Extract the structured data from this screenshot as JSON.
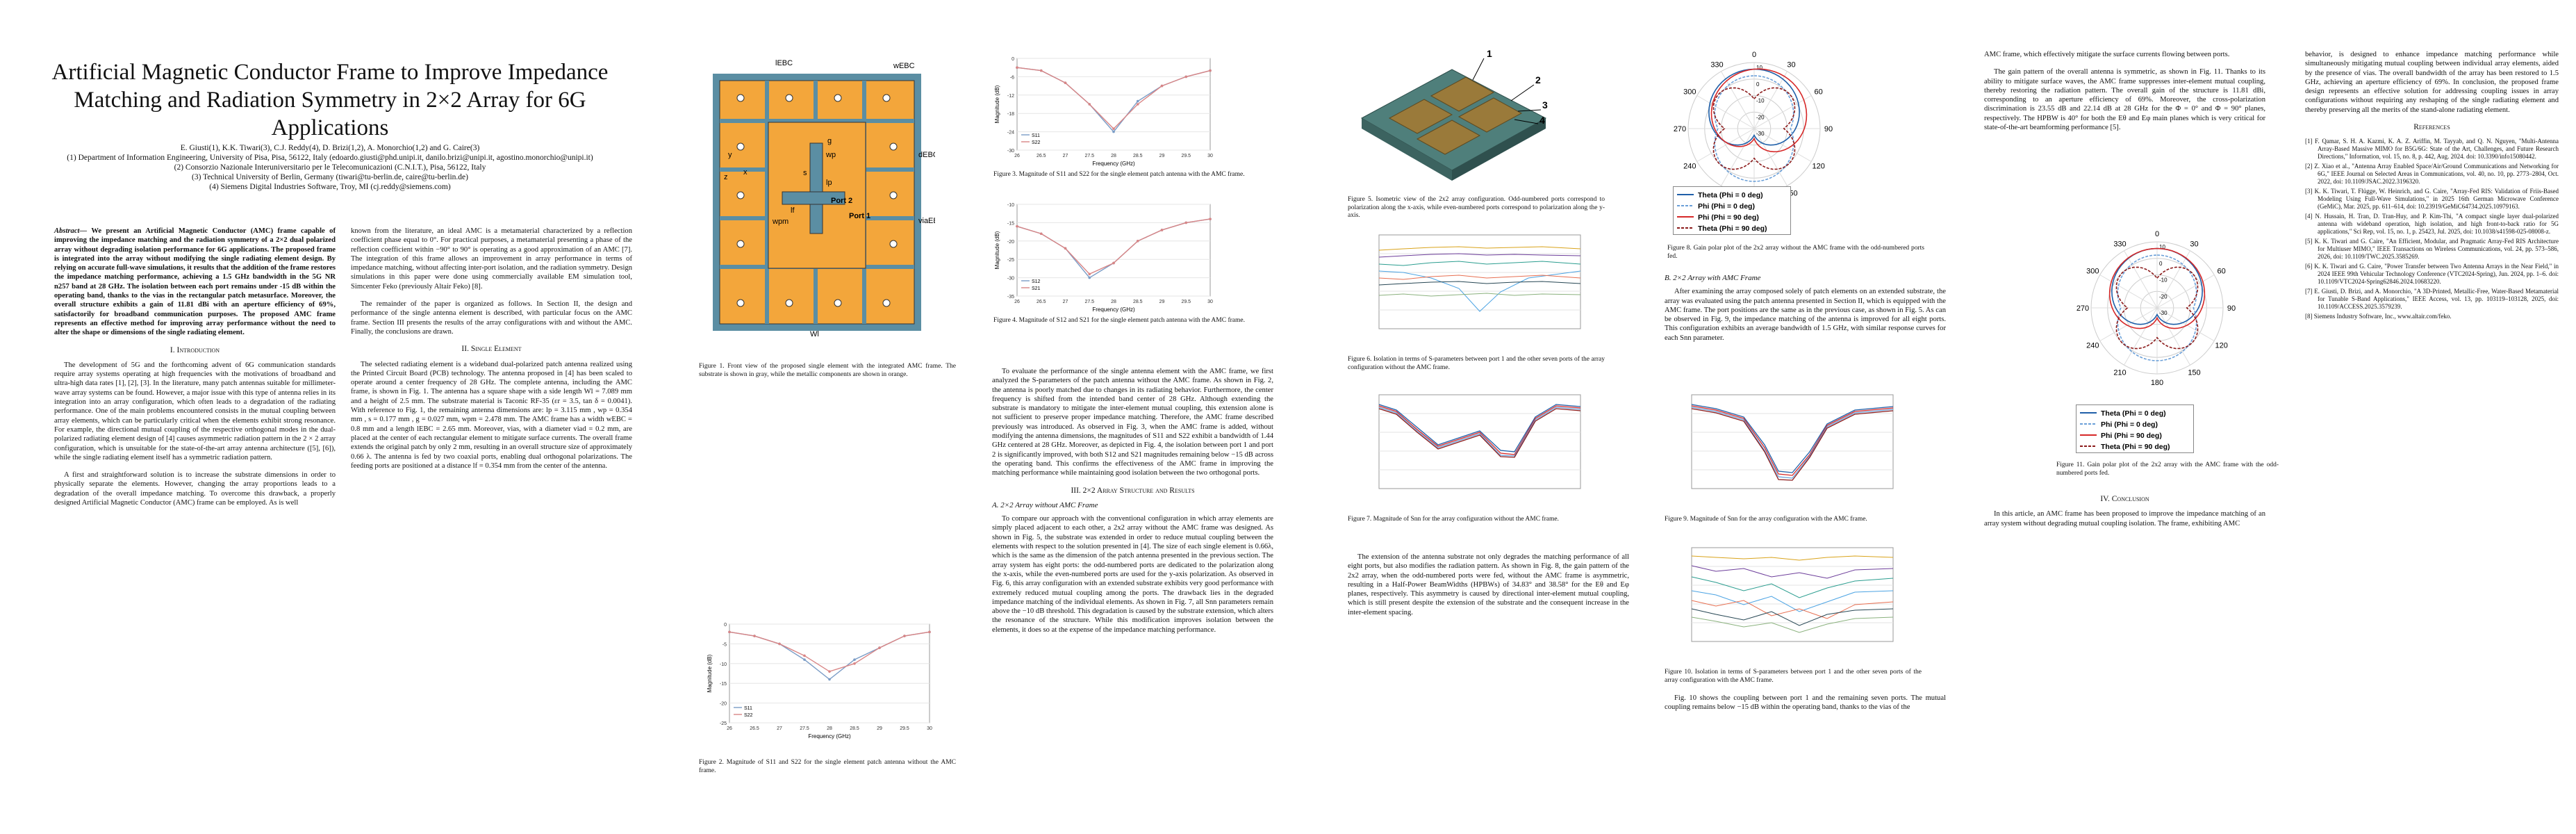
{
  "paper": {
    "title": "Artificial Magnetic Conductor Frame to Improve Impedance Matching and Radiation Symmetry in 2×2 Array for 6G Applications",
    "authors": "E. Giusti(1), K.K. Tiwari(3), C.J. Reddy(4), D. Brizi(1,2), A. Monorchio(1,2) and G. Caire(3)",
    "affil1": "(1) Department of Information Engineering, University of Pisa, Pisa, 56122, Italy (edoardo.giusti@phd.unipi.it, danilo.brizi@unipi.it, agostino.monorchio@unipi.it)",
    "affil2": "(2) Consorzio Nazionale Interuniversitario per le Telecomunicazioni (C.N.I.T.), Pisa, 56122, Italy",
    "affil3": "(3) Technical University of Berlin, Germany (tiwari@tu-berlin.de, caire@tu-berlin.de)",
    "affil4": "(4) Siemens Digital Industries Software, Troy, MI (cj.reddy@siemens.com)"
  },
  "col1": {
    "abstract_label": "Abstract—",
    "abstract": "We present an Artificial Magnetic Conductor (AMC) frame capable of improving the impedance matching and the radiation symmetry of a 2×2 dual polarized array without degrading isolation performance for 6G applications. The proposed frame is integrated into the array without modifying the single radiating element design. By relying on accurate full-wave simulations, it results that the addition of the frame restores the impedance matching performance, achieving a 1.5 GHz bandwidth in the 5G NR n257 band at 28 GHz. The isolation between each port remains under -15 dB within the operating band, thanks to the vias in the rectangular patch metasurface. Moreover, the overall structure exhibits a gain of 11.81 dBi with an aperture efficiency of 69%, satisfactorily for broadband communication purposes. The proposed AMC frame represents an effective method for improving array performance without the need to alter the shape or dimensions of the single radiating element.",
    "sec1": "I. Introduction",
    "p1": "The development of 5G and the forthcoming advent of 6G communication standards require array systems operating at high frequencies with the motivations of broadband and ultra-high data rates [1], [2], [3]. In the literature, many patch antennas suitable for millimeter-wave array systems can be found. However, a major issue with this type of antenna relies in its integration into an array configuration, which often leads to a degradation of the radiating performance. One of the main problems encountered consists in the mutual coupling between array elements, which can be particularly critical when the elements exhibit strong resonance. For example, the directional mutual coupling of the respective orthogonal modes in the dual-polarized radiating element design of [4] causes asymmetric radiation pattern in the 2 × 2 array configuration, which is unsuitable for the state-of-the-art array antenna architecture ([5], [6]), while the single radiating element itself has a symmetric radiation pattern.",
    "p2": "A first and straightforward solution is to increase the substrate dimensions in order to physically separate the elements. However, changing the array proportions leads to a degradation of the overall impedance matching. To overcome this drawback, a properly designed Artificial Magnetic Conductor (AMC) frame can be employed. As is well"
  },
  "col2": {
    "p1": "known from the literature, an ideal AMC is a metamaterial characterized by a reflection coefficient phase equal to 0°. For practical purposes, a metamaterial presenting a phase of the reflection coefficient within −90° to 90° is operating as a good approximation of an AMC [7]. The integration of this frame allows an improvement in array performance in terms of impedance matching, without affecting inter-port isolation, and the radiation symmetry. Design simulations in this paper were done using commercially available EM simulation tool, Simcenter Feko (previously Altair Feko) [8].",
    "p2": "The remainder of the paper is organized as follows. In Section II, the design and performance of the single antenna element is described, with particular focus on the AMC frame. Section III presents the results of the array configurations with and without the AMC. Finally, the conclusions are drawn.",
    "sec2": "II. Single Element",
    "p3": "The selected radiating element is a wideband dual-polarized patch antenna realized using the Printed Circuit Board (PCB) technology. The antenna proposed in [4] has been scaled to operate around a center frequency of 28 GHz. The complete antenna, including the AMC frame, is shown in Fig. 1. The antenna has a square shape with a side length Wl = 7.089 mm and a height of 2.5 mm. The substrate material is Taconic RF-35 (εr = 3.5, tan δ = 0.0041). With reference to Fig. 1, the remaining antenna dimensions are: lp = 3.115 mm , wp = 0.354 mm , s = 0.177 mm , g = 0.027 mm, wpm = 2.478 mm. The AMC frame has a width wEBC = 0.8 mm and a length lEBC = 2.65 mm. Moreover, vias, with a diameter viad = 0.2 mm, are placed at the center of each rectangular element to mitigate surface currents. The overall frame extends the original patch by only 2 mm, resulting in an overall structure size of approximately 0.66 λ. The antenna is fed by two coaxial ports, enabling dual orthogonal polarizations. The feeding ports are positioned at a distance lf = 0.354 mm from the center of the antenna."
  },
  "col3": {
    "fig1_cap": "Figure 1. Front view of the proposed single element with the integrated AMC frame. The substrate is shown in gray, while the metallic components are shown in orange.",
    "fig2_cap": "Figure 2. Magnitude of S11 and S22 for the single element patch antenna without the AMC frame."
  },
  "col4": {
    "fig3_cap": "Figure 3. Magnitude of S11 and S22 for the single element patch antenna with the AMC frame.",
    "fig4_cap": "Figure 4. Magnitude of S12 and S21 for the single element patch antenna with the AMC frame.",
    "p1": "To evaluate the performance of the single antenna element with the AMC frame, we first analyzed the S-parameters of the patch antenna without the AMC frame. As shown in Fig. 2, the antenna is poorly matched due to changes in its radiating behavior. Furthermore, the center frequency is shifted from the intended band center of 28 GHz. Although extending the substrate is mandatory to mitigate the inter-element mutual coupling, this extension alone is not sufficient to preserve proper impedance matching. Therefore, the AMC frame described previously was introduced. As observed in Fig. 3, when the AMC frame is added, without modifying the antenna dimensions, the magnitudes of S11 and S22 exhibit a bandwidth of 1.44 GHz centered at 28 GHz. Moreover, as depicted in Fig. 4, the isolation between port 1 and port 2 is significantly improved, with both S12 and S21 magnitudes remaining below −15 dB across the operating band. This confirms the effectiveness of the AMC frame in improving the matching performance while maintaining good isolation between the two orthogonal ports.",
    "sec3": "III. 2×2 Array Structure and Results",
    "sub_a": "A. 2×2 Array without AMC Frame",
    "p2": "To compare our approach with the conventional configuration in which array elements are simply placed adjacent to each other, a 2x2 array without the AMC frame was designed. As shown in Fig. 5, the substrate was extended in order to reduce mutual coupling between the elements with respect to the solution presented in [4]. The size of each single element is 0.66λ, which is the same as the dimension of the patch antenna presented in the previous section. The array system has eight ports: the odd-numbered ports are dedicated to the polarization along the x-axis, while the even-numbered ports are used for the y-axis polarization. As observed in Fig. 6, this array configuration with an extended substrate exhibits very good performance with extremely reduced mutual coupling among the ports. The drawback lies in the degraded impedance matching of the individual elements. As shown in Fig. 7, all Snn parameters remain above the −10 dB threshold. This degradation is caused by the substrate extension, which alters the resonance of the structure. While this modification improves isolation between the elements, it does so at the expense of the impedance matching performance."
  },
  "col5": {
    "fig5_cap": "Figure 5. Isometric view of the 2x2 array configuration. Odd-numbered ports correspond to polarization along the x-axis, while even-numbered ports correspond to polarization along the y-axis.",
    "fig6_cap": "Figure 6. Isolation in terms of S-parameters between port 1 and the other seven ports of the array configuration without the AMC frame.",
    "fig7_cap": "Figure 7. Magnitude of Snn for the array configuration without the AMC frame.",
    "p1": "The extension of the antenna substrate not only degrades the matching performance of all eight ports, but also modifies the radiation pattern. As shown in Fig. 8, the gain pattern of the 2x2 array, when the odd-numbered ports were fed, without the AMC frame is asymmetric, resulting in a Half-Power BeamWidths (HPBWs) of 34.83° and 38.58° for the Eθ and Eφ planes, respectively. This asymmetry is caused by directional inter-element mutual coupling, which is still present despite the extension of the substrate and the consequent increase in the inter-element spacing."
  },
  "col6": {
    "fig8_cap": "Figure 8. Gain polar plot of the 2x2 array without the AMC frame with the odd-numbered ports fed.",
    "sub_b": "B. 2×2 Array with AMC Frame",
    "p1": "After examining the array composed solely of patch elements on an extended substrate, the array was evaluated using the patch antenna presented in Section II, which is equipped with the AMC frame. The port positions are the same as in the previous case, as shown in Fig. 5. As can be observed in Fig. 9, the impedance matching of the antenna is improved for all eight ports. This configuration exhibits an average bandwidth of 1.5 GHz, with similar response curves for each Snn parameter.",
    "fig9_cap": "Figure 9. Magnitude of Snn for the array configuration with the AMC frame.",
    "fig10_cap": "Figure 10. Isolation in terms of S-parameters between port 1 and the other seven ports of the array configuration with the AMC frame.",
    "p2": "Fig. 10 shows the coupling between port 1 and the remaining seven ports. The mutual coupling remains below −15 dB within the operating band, thanks to the vias of the"
  },
  "col7": {
    "p1": "AMC frame, which effectively mitigate the surface currents flowing between ports.",
    "p2": "The gain pattern of the overall antenna is symmetric, as shown in Fig. 11. Thanks to its ability to mitigate surface waves, the AMC frame suppresses inter-element mutual coupling, thereby restoring the radiation pattern. The overall gain of the structure is 11.81 dBi, corresponding to an aperture efficiency of 69%. Moreover, the cross-polarization discrimination is 23.55 dB and 22.14 dB at 28 GHz for the Φ = 0° and Φ = 90° planes, respectively. The HPBW is 40° for both the Eθ and Eφ main planes which is very critical for state-of-the-art beamforming performance [5].",
    "fig11_cap": "Figure 11. Gain polar plot of the 2x2 array with the AMC frame with the odd-numbered ports fed.",
    "sec4": "IV. Conclusion",
    "p3": "In this article, an AMC frame has been proposed to improve the impedance matching of an array system without degrading mutual coupling isolation. The frame, exhibiting AMC"
  },
  "col8": {
    "p1": "behavior, is designed to enhance impedance matching performance while simultaneously mitigating mutual coupling between individual array elements, aided by the presence of vias. The overall bandwidth of the array has been restored to 1.5 GHz, achieving an aperture efficiency of 69%. In conclusion, the proposed frame design represents an effective solution for addressing coupling issues in array configurations without requiring any reshaping of the single radiating element and thereby preserving all the merits of the stand-alone radiating element.",
    "refs_title": "References",
    "refs": [
      "[1] F. Qamar, S. H. A. Kazmi, K. A. Z. Ariffin, M. Tayyab, and Q. N. Nguyen, \"Multi-Antenna Array-Based Massive MIMO for B5G/6G: State of the Art, Challenges, and Future Research Directions,\" Information, vol. 15, no. 8, p. 442, Aug. 2024. doi: 10.3390/info15080442.",
      "[2] Z. Xiao et al., \"Antenna Array Enabled Space/Air/Ground Communications and Networking for 6G,\" IEEE Journal on Selected Areas in Communications, vol. 40, no. 10, pp. 2773–2804, Oct. 2022, doi: 10.1109/JSAC.2022.3196320.",
      "[3] K. K. Tiwari, T. Flügge, W. Heinrich, and G. Caire, \"Array-Fed RIS: Validation of Friis-Based Modeling Using Full-Wave Simulations,\" in 2025 16th German Microwave Conference (GeMiC), Mar. 2025, pp. 611–614, doi: 10.23919/GeMiC64734.2025.10979163.",
      "[4] N. Hussain, H. Tran, D. Tran-Huy, and P. Kim-Thi, \"A compact single layer dual-polarized antenna with wideband operation, high isolation, and high front-to-back ratio for 5G applications,\" Sci Rep, vol. 15, no. 1, p. 25423, Jul. 2025, doi: 10.1038/s41598-025-08008-z.",
      "[5] K. K. Tiwari and G. Caire, \"An Efficient, Modular, and Pragmatic Array-Fed RIS Architecture for Multiuser MIMO,\" IEEE Transactions on Wireless Communications, vol. 24, pp. 573–586, 2026, doi: 10.1109/TWC.2025.3585269.",
      "[6] K. K. Tiwari and G. Caire, \"Power Transfer between Two Antenna Arrays in the Near Field,\" in 2024 IEEE 99th Vehicular Technology Conference (VTC2024-Spring), Jun. 2024, pp. 1–6. doi: 10.1109/VTC2024-Spring62846.2024.10683220.",
      "[7] E. Giusti, D. Brizi, and A. Monorchio, \"A 3D-Printed, Metallic-Free, Water-Based Metamaterial for Tunable S-Band Applications,\" IEEE Access, vol. 13, pp. 103119–103128, 2025, doi: 10.1109/ACCESS.2025.3579239.",
      "[8] Siemens Industry Software, Inc., www.altair.com/feko."
    ]
  },
  "fig1": {
    "labels": [
      "lEBC",
      "wEBC",
      "dEBC",
      "viaEBC",
      "g",
      "wp",
      "s",
      "lp",
      "wpm",
      "lf",
      "Port 2",
      "Port 1",
      "Wl",
      "x",
      "y",
      "z"
    ]
  },
  "fig5": {
    "port_labels": [
      "1",
      "2",
      "3",
      "4"
    ]
  },
  "polar": {
    "angle_labels": [
      "0",
      "30",
      "60",
      "90",
      "120",
      "150",
      "180",
      "210",
      "240",
      "270",
      "300",
      "330"
    ],
    "radial_labels": [
      "10",
      "0",
      "-10",
      "-20",
      "-30"
    ],
    "legend": [
      "Theta (Phi = 0 deg)",
      "Phi (Phi = 0 deg)",
      "Phi (Phi = 90 deg)",
      "Theta (Phi = 90 deg)"
    ],
    "colors": [
      "#1f5fa8",
      "#6a9fd8",
      "#d62828",
      "#8b1a1a"
    ]
  },
  "chart_data": [
    {
      "type": "line",
      "title": "",
      "xlabel": "Frequency (GHz)",
      "ylabel": "Magnitude (dB)",
      "x": [
        26,
        26.5,
        27,
        27.5,
        28,
        28.5,
        29,
        29.5,
        30
      ],
      "xlim": [
        26,
        30
      ],
      "ylim": [
        -25,
        0
      ],
      "series": [
        {
          "name": "S11",
          "values": [
            -2,
            -3,
            -5,
            -9,
            -14,
            -9,
            -6,
            -3,
            -2
          ]
        },
        {
          "name": "S22",
          "values": [
            -2,
            -3,
            -5,
            -8,
            -12,
            -10,
            -6,
            -3,
            -2
          ]
        }
      ]
    },
    {
      "type": "line",
      "title": "",
      "xlabel": "Frequency (GHz)",
      "ylabel": "Magnitude (dB)",
      "x": [
        26,
        26.5,
        27,
        27.5,
        28,
        28.5,
        29,
        29.5,
        30
      ],
      "xlim": [
        26,
        30
      ],
      "ylim": [
        -30,
        0
      ],
      "series": [
        {
          "name": "S11",
          "values": [
            -3,
            -4,
            -8,
            -15,
            -24,
            -14,
            -9,
            -6,
            -4
          ]
        },
        {
          "name": "S22",
          "values": [
            -3,
            -4,
            -8,
            -15,
            -23,
            -15,
            -9,
            -6,
            -4
          ]
        }
      ]
    },
    {
      "type": "line",
      "title": "",
      "xlabel": "Frequency (GHz)",
      "ylabel": "Magnitude (dB)",
      "x": [
        26,
        26.5,
        27,
        27.5,
        28,
        28.5,
        29,
        29.5,
        30
      ],
      "xlim": [
        26,
        30
      ],
      "ylim": [
        -35,
        -10
      ],
      "series": [
        {
          "name": "S12",
          "values": [
            -16,
            -18,
            -22,
            -30,
            -26,
            -20,
            -17,
            -15,
            -14
          ]
        },
        {
          "name": "S21",
          "values": [
            -16,
            -18,
            -22,
            -29,
            -26,
            -20,
            -17,
            -15,
            -14
          ]
        }
      ]
    }
  ]
}
